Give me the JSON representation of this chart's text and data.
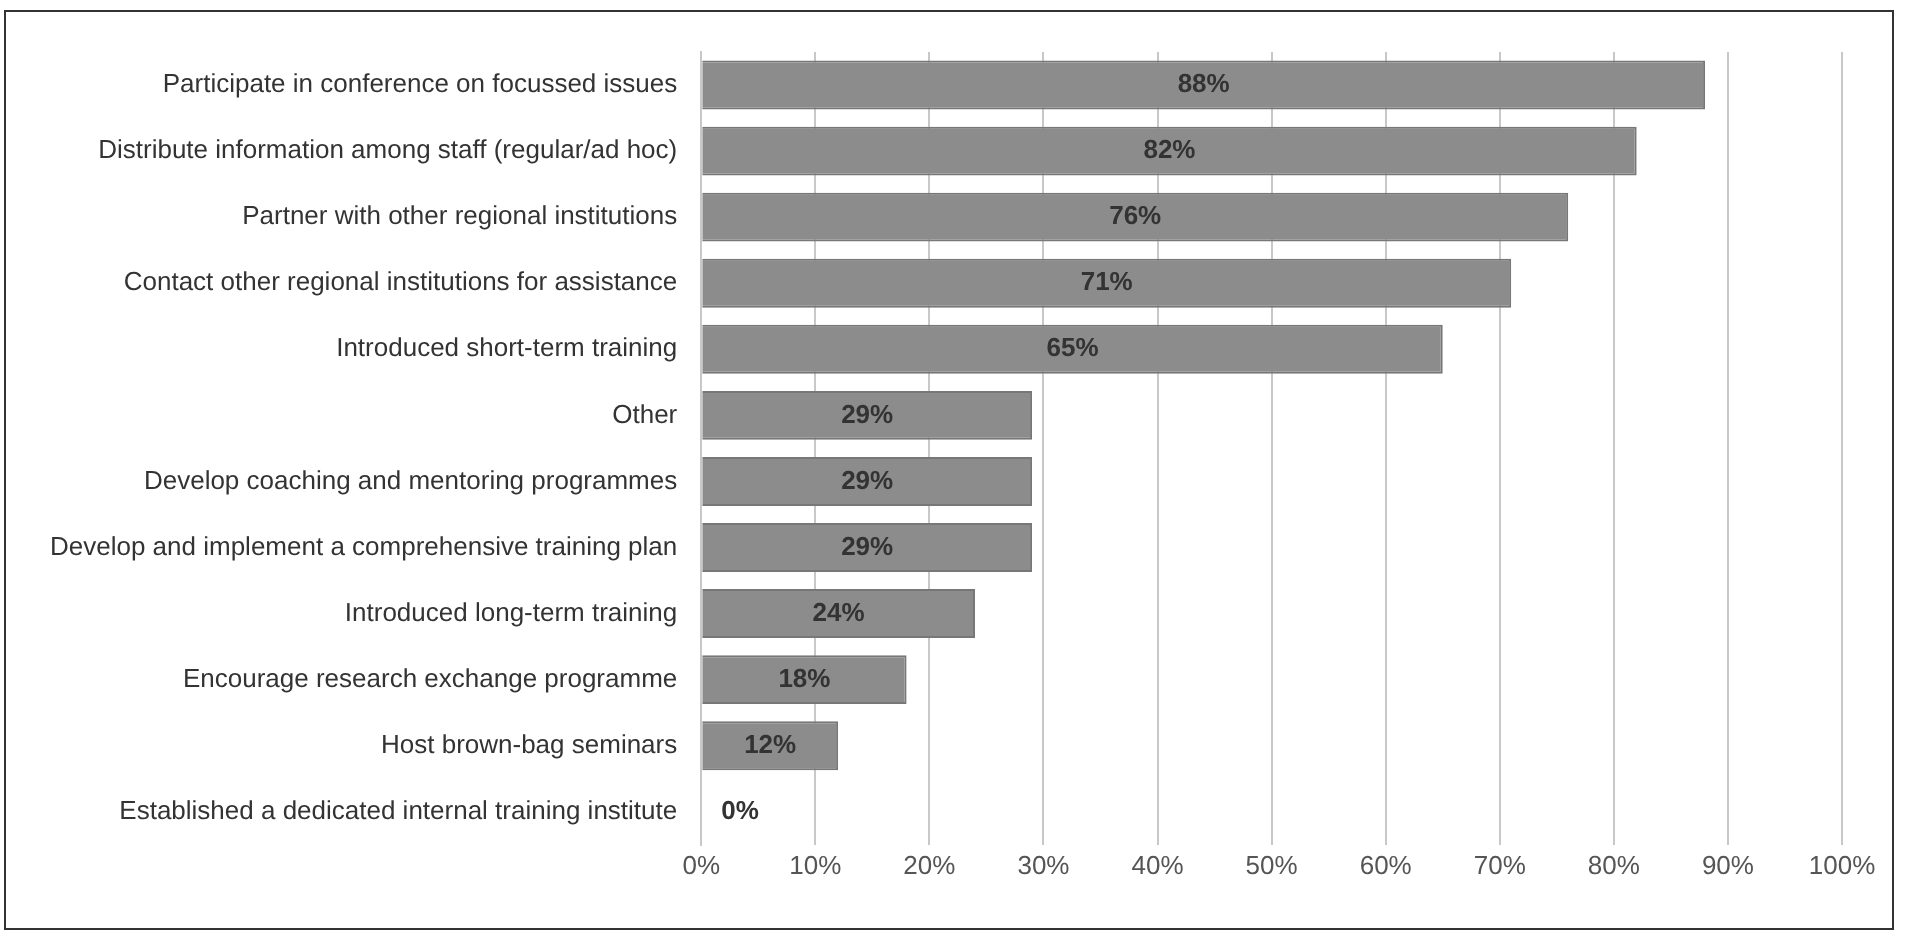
{
  "chart_data": {
    "type": "bar",
    "orientation": "horizontal",
    "categories": [
      "Participate in conference on focussed issues",
      "Distribute information among staff (regular/ad hoc)",
      "Partner with other regional institutions",
      "Contact other regional institutions for assistance",
      "Introduced short-term training",
      "Other",
      "Develop coaching and mentoring programmes",
      "Develop and implement a comprehensive training plan",
      "Introduced long-term training",
      "Encourage research exchange programme",
      "Host brown-bag seminars",
      "Established a dedicated internal training institute"
    ],
    "values": [
      88,
      82,
      76,
      71,
      65,
      29,
      29,
      29,
      24,
      18,
      12,
      0
    ],
    "value_labels": [
      "88%",
      "82%",
      "76%",
      "71%",
      "65%",
      "29%",
      "29%",
      "29%",
      "24%",
      "18%",
      "12%",
      "0%"
    ],
    "color": "#8c8c8c",
    "xlim": [
      0,
      100
    ],
    "xticks": [
      {
        "value": 0,
        "label": "0%"
      },
      {
        "value": 10,
        "label": "10%"
      },
      {
        "value": 20,
        "label": "20%"
      },
      {
        "value": 30,
        "label": "30%"
      },
      {
        "value": 40,
        "label": "40%"
      },
      {
        "value": 50,
        "label": "50%"
      },
      {
        "value": 60,
        "label": "60%"
      },
      {
        "value": 70,
        "label": "70%"
      },
      {
        "value": 80,
        "label": "80%"
      },
      {
        "value": 90,
        "label": "90%"
      },
      {
        "value": 100,
        "label": "100%"
      }
    ],
    "grid": "x",
    "legend": false
  }
}
